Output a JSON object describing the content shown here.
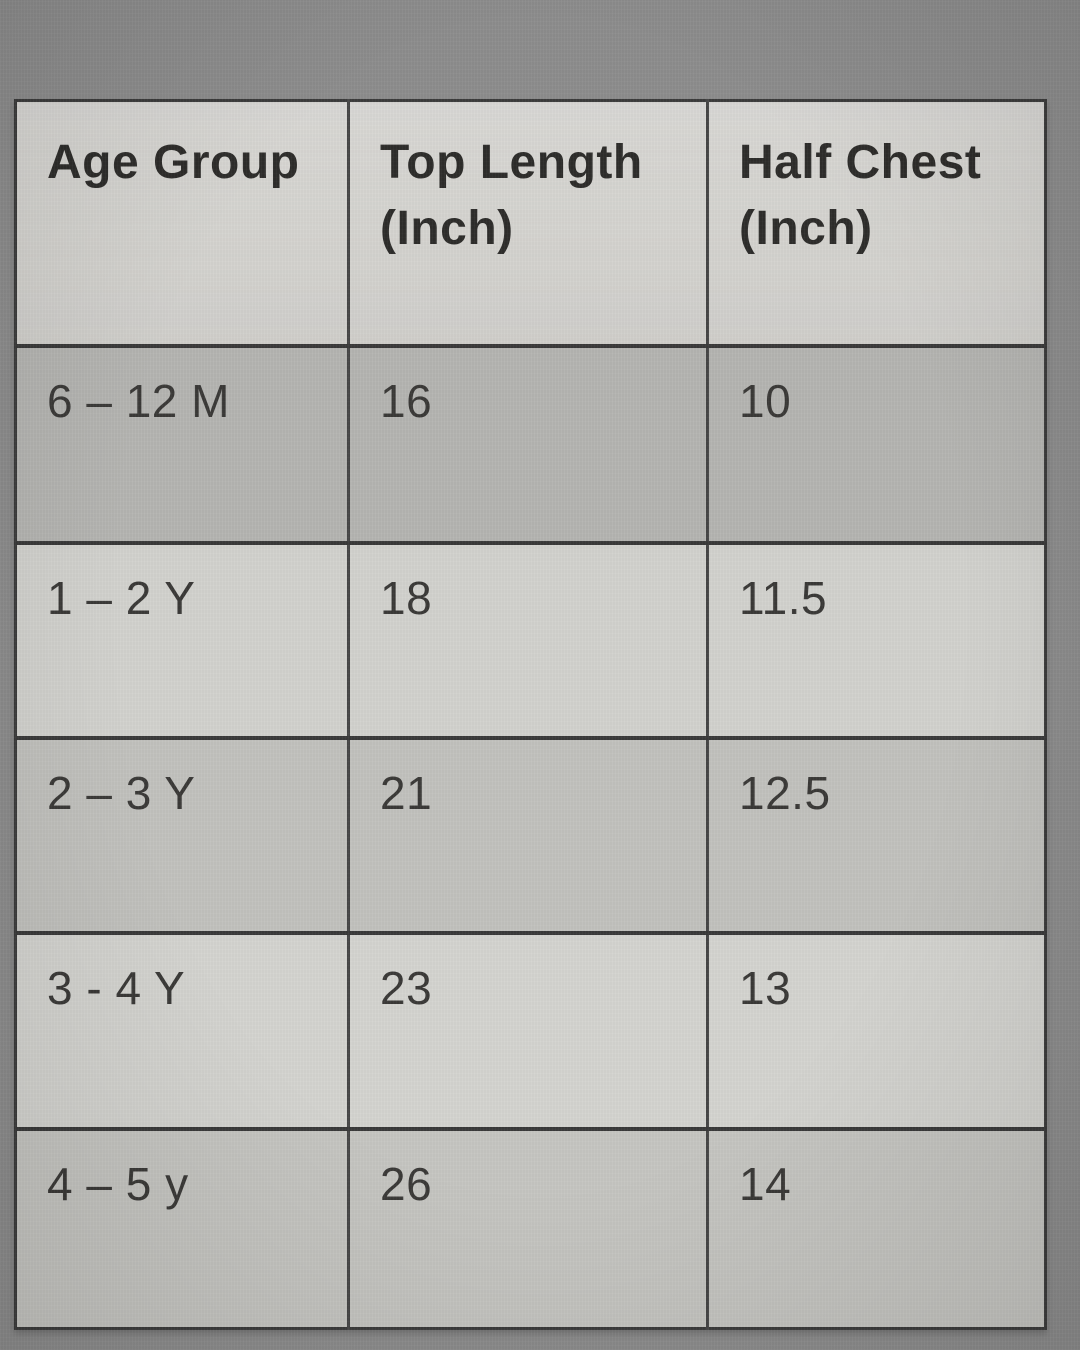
{
  "table": {
    "headers": [
      "Age Group",
      "Top Length\n(Inch)",
      "Half Chest\n(Inch)"
    ],
    "rows": [
      {
        "age": "6 – 12 M",
        "top_length": "16",
        "half_chest": "10"
      },
      {
        "age": "1 – 2 Y",
        "top_length": "18",
        "half_chest": "11.5"
      },
      {
        "age": "2 – 3 Y",
        "top_length": "21",
        "half_chest": "12.5"
      },
      {
        "age": "3 - 4 Y",
        "top_length": "23",
        "half_chest": "13"
      },
      {
        "age": "4 – 5 y",
        "top_length": "26",
        "half_chest": "14"
      }
    ]
  },
  "colors": {
    "page_background": "#8d8d8d",
    "header_row_bg": "#d7d6d2",
    "row_backgrounds": [
      "#b5b5b2",
      "#d2d2ce",
      "#c2c2be",
      "#d4d4d0",
      "#c6c6c2"
    ],
    "border": "#3c3c3c",
    "header_text": "#2e2d2b",
    "cell_text": "#3b3a38"
  },
  "chart_data": {
    "type": "table",
    "columns": [
      "Age Group",
      "Top Length (Inch)",
      "Half Chest (Inch)"
    ],
    "rows": [
      [
        "6 – 12 M",
        16,
        10
      ],
      [
        "1 – 2 Y",
        18,
        11.5
      ],
      [
        "2 – 3 Y",
        21,
        12.5
      ],
      [
        "3 - 4 Y",
        23,
        13
      ],
      [
        "4 – 5 y",
        26,
        14
      ]
    ]
  }
}
